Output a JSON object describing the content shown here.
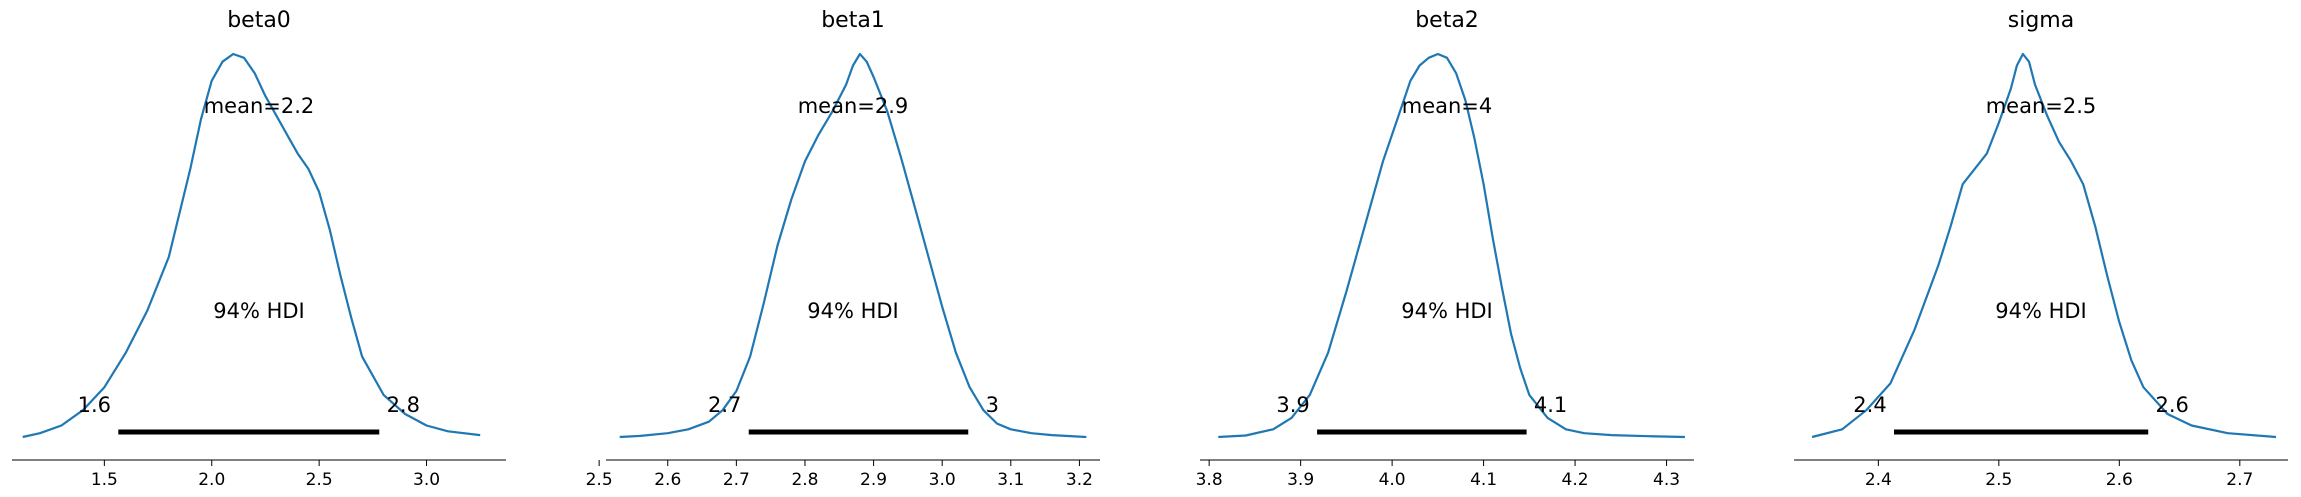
{
  "chart_data": [
    {
      "type": "area",
      "title": "beta0",
      "point_estimate_label": "mean=2.2",
      "hdi_label": "94% HDI",
      "hdi": [
        1.6,
        2.8
      ],
      "hdi_values": [
        1.565,
        2.78
      ],
      "hdi_labels": [
        "1.6",
        "2.8"
      ],
      "xlim": [
        1.07,
        3.37
      ],
      "ticks": [
        1.5,
        2.0,
        2.5,
        3.0
      ],
      "tick_labels": [
        "1.5",
        "2.0",
        "2.5",
        "3.0"
      ],
      "density": {
        "x": [
          1.12,
          1.2,
          1.3,
          1.4,
          1.5,
          1.6,
          1.7,
          1.8,
          1.9,
          1.95,
          2.0,
          2.05,
          2.1,
          2.15,
          2.2,
          2.25,
          2.3,
          2.35,
          2.4,
          2.45,
          2.5,
          2.55,
          2.6,
          2.65,
          2.7,
          2.8,
          2.9,
          3.0,
          3.1,
          3.25
        ],
        "y": [
          0.0,
          0.01,
          0.03,
          0.07,
          0.13,
          0.22,
          0.33,
          0.47,
          0.7,
          0.83,
          0.93,
          0.98,
          1.0,
          0.99,
          0.95,
          0.89,
          0.84,
          0.79,
          0.74,
          0.7,
          0.64,
          0.54,
          0.42,
          0.31,
          0.21,
          0.11,
          0.06,
          0.03,
          0.015,
          0.005
        ]
      }
    },
    {
      "type": "area",
      "title": "beta1",
      "point_estimate_label": "mean=2.9",
      "hdi_label": "94% HDI",
      "hdi": [
        2.7,
        3.0
      ],
      "hdi_values": [
        2.718,
        3.038
      ],
      "hdi_labels": [
        "2.7",
        "3"
      ],
      "xlim": [
        2.51,
        3.23
      ],
      "ticks": [
        2.5,
        2.6,
        2.7,
        2.8,
        2.9,
        3.0,
        3.1,
        3.2
      ],
      "tick_labels": [
        "2.5",
        "2.6",
        "2.7",
        "2.8",
        "2.9",
        "3.0",
        "3.1",
        "3.2"
      ],
      "density": {
        "x": [
          2.53,
          2.56,
          2.6,
          2.63,
          2.66,
          2.68,
          2.7,
          2.72,
          2.74,
          2.76,
          2.78,
          2.8,
          2.82,
          2.84,
          2.86,
          2.87,
          2.88,
          2.89,
          2.9,
          2.92,
          2.94,
          2.96,
          2.98,
          3.0,
          3.02,
          3.04,
          3.06,
          3.08,
          3.1,
          3.13,
          3.16,
          3.21
        ],
        "y": [
          0.0,
          0.003,
          0.01,
          0.02,
          0.04,
          0.07,
          0.12,
          0.21,
          0.35,
          0.5,
          0.62,
          0.72,
          0.79,
          0.85,
          0.92,
          0.97,
          1.0,
          0.98,
          0.94,
          0.85,
          0.73,
          0.6,
          0.47,
          0.34,
          0.22,
          0.13,
          0.07,
          0.035,
          0.02,
          0.01,
          0.005,
          0.0
        ]
      }
    },
    {
      "type": "area",
      "title": "beta2",
      "point_estimate_label": "mean=4",
      "hdi_label": "94% HDI",
      "hdi": [
        3.9,
        4.1
      ],
      "hdi_values": [
        3.918,
        4.147
      ],
      "hdi_labels": [
        "3.9",
        "4.1"
      ],
      "xlim": [
        3.79,
        4.33
      ],
      "ticks": [
        3.8,
        3.9,
        4.0,
        4.1,
        4.2,
        4.3
      ],
      "tick_labels": [
        "3.8",
        "3.9",
        "4.0",
        "4.1",
        "4.2",
        "4.3"
      ],
      "density": {
        "x": [
          3.81,
          3.84,
          3.87,
          3.89,
          3.91,
          3.93,
          3.95,
          3.97,
          3.99,
          4.01,
          4.02,
          4.03,
          4.04,
          4.05,
          4.06,
          4.07,
          4.08,
          4.09,
          4.1,
          4.11,
          4.12,
          4.13,
          4.14,
          4.15,
          4.17,
          4.19,
          4.21,
          4.24,
          4.28,
          4.32
        ],
        "y": [
          0.0,
          0.004,
          0.02,
          0.05,
          0.11,
          0.22,
          0.38,
          0.55,
          0.72,
          0.86,
          0.93,
          0.97,
          0.99,
          1.0,
          0.99,
          0.95,
          0.88,
          0.78,
          0.66,
          0.52,
          0.39,
          0.27,
          0.18,
          0.11,
          0.05,
          0.02,
          0.01,
          0.005,
          0.002,
          0.0
        ]
      }
    },
    {
      "type": "area",
      "title": "sigma",
      "point_estimate_label": "mean=2.5",
      "hdi_label": "94% HDI",
      "hdi": [
        2.4,
        2.6
      ],
      "hdi_values": [
        2.413,
        2.624
      ],
      "hdi_labels": [
        "2.4",
        "2.6"
      ],
      "xlim": [
        2.33,
        2.74
      ],
      "ticks": [
        2.4,
        2.5,
        2.6,
        2.7
      ],
      "tick_labels": [
        "2.4",
        "2.5",
        "2.6",
        "2.7"
      ],
      "density": {
        "x": [
          2.345,
          2.37,
          2.39,
          2.41,
          2.43,
          2.45,
          2.46,
          2.47,
          2.48,
          2.49,
          2.5,
          2.51,
          2.515,
          2.52,
          2.525,
          2.53,
          2.54,
          2.55,
          2.56,
          2.57,
          2.58,
          2.59,
          2.6,
          2.61,
          2.62,
          2.64,
          2.66,
          2.69,
          2.73
        ],
        "y": [
          0.0,
          0.02,
          0.07,
          0.14,
          0.28,
          0.45,
          0.55,
          0.66,
          0.7,
          0.74,
          0.82,
          0.91,
          0.97,
          1.0,
          0.98,
          0.92,
          0.84,
          0.77,
          0.72,
          0.66,
          0.55,
          0.42,
          0.3,
          0.2,
          0.13,
          0.06,
          0.03,
          0.01,
          0.0
        ]
      }
    }
  ]
}
